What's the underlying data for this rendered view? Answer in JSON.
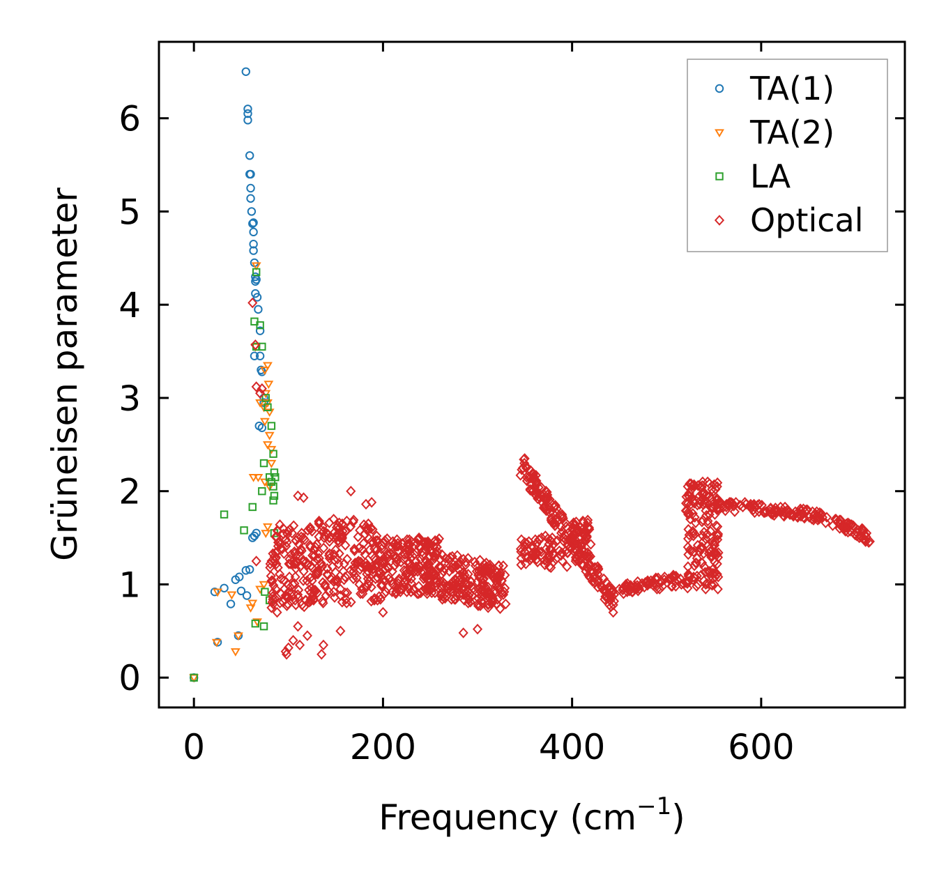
{
  "chart_data": {
    "type": "scatter",
    "title": "",
    "xlabel": "Frequency (cm",
    "xlabel_sup": "−1",
    "xlabel_close": ")",
    "ylabel": "Grüneisen parameter",
    "xlim": [
      -37,
      752
    ],
    "ylim": [
      -0.32,
      6.82
    ],
    "xticks": [
      0,
      200,
      400,
      600
    ],
    "xtick_labels": [
      "0",
      "200",
      "400",
      "600"
    ],
    "yticks": [
      0,
      1,
      2,
      3,
      4,
      5,
      6
    ],
    "ytick_labels": [
      "0",
      "1",
      "2",
      "3",
      "4",
      "5",
      "6"
    ],
    "legend_position": "top-right",
    "series": [
      {
        "name": "TA(1)",
        "marker": "circle",
        "color": "#1f77b4",
        "points": [
          [
            0,
            0
          ],
          [
            22,
            0.92
          ],
          [
            25,
            0.38
          ],
          [
            32,
            0.96
          ],
          [
            39,
            0.79
          ],
          [
            44,
            1.05
          ],
          [
            47,
            0.45
          ],
          [
            48,
            1.08
          ],
          [
            50,
            0.93
          ],
          [
            55,
            1.15
          ],
          [
            56,
            0.88
          ],
          [
            59,
            1.16
          ],
          [
            62,
            1.5
          ],
          [
            64,
            1.52
          ],
          [
            66,
            1.55
          ],
          [
            55,
            6.5
          ],
          [
            57,
            6.1
          ],
          [
            57,
            6.05
          ],
          [
            57,
            5.98
          ],
          [
            59,
            5.6
          ],
          [
            59,
            5.4
          ],
          [
            60,
            5.4
          ],
          [
            60,
            5.25
          ],
          [
            60,
            5.14
          ],
          [
            61,
            5.0
          ],
          [
            62,
            4.87
          ],
          [
            63,
            4.88
          ],
          [
            63,
            4.78
          ],
          [
            63,
            4.65
          ],
          [
            63,
            4.58
          ],
          [
            64,
            4.45
          ],
          [
            65,
            4.3
          ],
          [
            65,
            4.25
          ],
          [
            66,
            4.27
          ],
          [
            65,
            4.12
          ],
          [
            67,
            4.08
          ],
          [
            68,
            3.95
          ],
          [
            70,
            3.72
          ],
          [
            64,
            3.45
          ],
          [
            70,
            3.45
          ],
          [
            71,
            3.3
          ],
          [
            72,
            3.28
          ],
          [
            74,
            3.0
          ],
          [
            74,
            2.95
          ],
          [
            69,
            2.7
          ],
          [
            72,
            2.68
          ]
        ]
      },
      {
        "name": "TA(2)",
        "marker": "triangle",
        "color": "#ff7f0e",
        "points": [
          [
            0,
            0
          ],
          [
            24,
            0.38
          ],
          [
            25,
            0.92
          ],
          [
            40,
            0.89
          ],
          [
            44,
            0.28
          ],
          [
            47,
            0.45
          ],
          [
            60,
            0.75
          ],
          [
            62,
            0.8
          ],
          [
            67,
            0.6
          ],
          [
            70,
            0.95
          ],
          [
            74,
            1.0
          ],
          [
            76,
            1.55
          ],
          [
            78,
            1.62
          ],
          [
            63,
            2.15
          ],
          [
            68,
            2.15
          ],
          [
            75,
            2.1
          ],
          [
            80,
            2.05
          ],
          [
            78,
            2.5
          ],
          [
            82,
            2.45
          ],
          [
            80,
            2.6
          ],
          [
            82,
            2.3
          ],
          [
            74,
            2.9
          ],
          [
            78,
            2.95
          ],
          [
            80,
            2.85
          ],
          [
            76,
            3.05
          ],
          [
            79,
            3.15
          ],
          [
            75,
            3.3
          ],
          [
            78,
            3.35
          ],
          [
            65,
            3.55
          ],
          [
            66,
            4.42
          ],
          [
            70,
            2.95
          ],
          [
            75,
            2.75
          ]
        ]
      },
      {
        "name": "LA",
        "marker": "square",
        "color": "#2ca02c",
        "points": [
          [
            0,
            0
          ],
          [
            32,
            1.75
          ],
          [
            53,
            1.58
          ],
          [
            62,
            1.83
          ],
          [
            65,
            0.58
          ],
          [
            75,
            0.92
          ],
          [
            74,
            0.55
          ],
          [
            80,
            0.83
          ],
          [
            72,
            2.0
          ],
          [
            74,
            2.3
          ],
          [
            80,
            2.15
          ],
          [
            82,
            2.1
          ],
          [
            84,
            2.4
          ],
          [
            85,
            2.2
          ],
          [
            84,
            2.05
          ],
          [
            85,
            1.95
          ],
          [
            84,
            1.9
          ],
          [
            86,
            2.15
          ],
          [
            82,
            2.7
          ],
          [
            78,
            2.9
          ],
          [
            76,
            3.0
          ],
          [
            72,
            3.55
          ],
          [
            66,
            3.55
          ],
          [
            64,
            3.82
          ],
          [
            70,
            3.78
          ],
          [
            66,
            4.35
          ],
          [
            85,
            1.55
          ]
        ]
      },
      {
        "name": "Optical",
        "marker": "diamond",
        "color": "#d62728",
        "points": []
      }
    ]
  },
  "legend": {
    "items": [
      "TA(1)",
      "TA(2)",
      "LA",
      "Optical"
    ]
  }
}
